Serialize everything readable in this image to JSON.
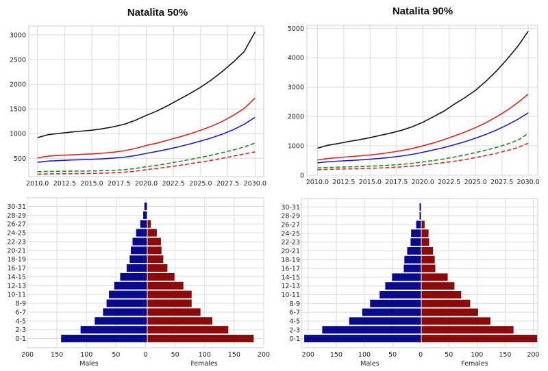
{
  "chart_data": [
    {
      "type": "line",
      "title": "Natalita 50%",
      "x": [
        2010,
        2011,
        2012,
        2013,
        2014,
        2015,
        2016,
        2017,
        2018,
        2019,
        2020,
        2021,
        2022,
        2023,
        2024,
        2025,
        2026,
        2027,
        2028,
        2029,
        2030
      ],
      "xlim": [
        2009.2,
        2030.8
      ],
      "ylim": [
        130,
        3180
      ],
      "xticks": [
        "2010.0",
        "2012.5",
        "2015.0",
        "2017.5",
        "2020.0",
        "2022.5",
        "2025.0",
        "2027.5",
        "2030.0"
      ],
      "yticks": [
        "500",
        "1000",
        "1500",
        "2000",
        "2500",
        "3000"
      ],
      "grid": true,
      "series": [
        {
          "color": "#111111",
          "style": "solid",
          "values": [
            920,
            980,
            1005,
            1030,
            1050,
            1070,
            1100,
            1140,
            1190,
            1270,
            1370,
            1460,
            1570,
            1690,
            1810,
            1940,
            2090,
            2260,
            2450,
            2660,
            3060
          ]
        },
        {
          "color": "#e8201c",
          "style": "solid",
          "values": [
            510,
            545,
            560,
            570,
            580,
            590,
            605,
            625,
            655,
            700,
            760,
            810,
            870,
            930,
            995,
            1070,
            1150,
            1250,
            1370,
            1510,
            1720
          ]
        },
        {
          "color": "#1a1adf",
          "style": "solid",
          "values": [
            420,
            445,
            455,
            465,
            472,
            480,
            490,
            505,
            525,
            555,
            600,
            640,
            685,
            735,
            790,
            850,
            915,
            990,
            1080,
            1190,
            1330
          ]
        },
        {
          "color": "#1c8a1c",
          "style": "dashed",
          "values": [
            230,
            235,
            238,
            240,
            242,
            245,
            250,
            258,
            270,
            295,
            330,
            360,
            395,
            435,
            475,
            520,
            565,
            615,
            670,
            730,
            810
          ]
        },
        {
          "color": "#e8201c",
          "style": "dashed",
          "values": [
            180,
            185,
            188,
            190,
            192,
            195,
            200,
            208,
            220,
            240,
            270,
            295,
            325,
            355,
            390,
            425,
            460,
            500,
            545,
            590,
            630
          ]
        }
      ]
    },
    {
      "type": "line",
      "title": "Natalita 90%",
      "x": [
        2010,
        2011,
        2012,
        2013,
        2014,
        2015,
        2016,
        2017,
        2018,
        2019,
        2020,
        2021,
        2022,
        2023,
        2024,
        2025,
        2026,
        2027,
        2028,
        2029,
        2030
      ],
      "xlim": [
        2009.0,
        2030.9
      ],
      "ylim": [
        0,
        5100
      ],
      "xticks": [
        "2010.0",
        "2012.5",
        "2015.0",
        "2017.5",
        "2020.0",
        "2022.5",
        "2025.0",
        "2027.5",
        "2030.0"
      ],
      "yticks": [
        "0",
        "1000",
        "2000",
        "3000",
        "4000",
        "5000"
      ],
      "grid": true,
      "series": [
        {
          "color": "#111111",
          "style": "solid",
          "values": [
            920,
            1020,
            1080,
            1150,
            1210,
            1280,
            1360,
            1440,
            1530,
            1650,
            1800,
            1990,
            2180,
            2420,
            2640,
            2890,
            3200,
            3550,
            3950,
            4380,
            4900
          ]
        },
        {
          "color": "#e8201c",
          "style": "solid",
          "values": [
            520,
            570,
            600,
            630,
            660,
            690,
            730,
            780,
            840,
            910,
            1000,
            1100,
            1210,
            1340,
            1470,
            1620,
            1790,
            1990,
            2210,
            2470,
            2760
          ]
        },
        {
          "color": "#1a1adf",
          "style": "solid",
          "values": [
            420,
            460,
            480,
            500,
            520,
            545,
            575,
            610,
            655,
            710,
            780,
            860,
            940,
            1040,
            1140,
            1260,
            1390,
            1540,
            1710,
            1900,
            2120
          ]
        },
        {
          "color": "#1c8a1c",
          "style": "dashed",
          "values": [
            250,
            265,
            275,
            285,
            295,
            310,
            325,
            345,
            370,
            405,
            450,
            500,
            555,
            620,
            690,
            770,
            855,
            950,
            1060,
            1190,
            1420
          ]
        },
        {
          "color": "#e8201c",
          "style": "dashed",
          "values": [
            190,
            200,
            210,
            218,
            226,
            236,
            248,
            264,
            284,
            310,
            345,
            385,
            430,
            480,
            535,
            600,
            670,
            750,
            840,
            940,
            1090
          ]
        }
      ]
    },
    {
      "type": "bar",
      "orientation": "horizontal-pyramid",
      "categories": [
        "0-1",
        "2-3",
        "4-5",
        "6-7",
        "8-9",
        "10-11",
        "12-13",
        "14-15",
        "16-17",
        "18-19",
        "20-21",
        "22-23",
        "24-25",
        "26-27",
        "28-29",
        "30-31"
      ],
      "xlim": [
        -200,
        200
      ],
      "xticks": [
        "200",
        "150",
        "100",
        "50",
        "0",
        "50",
        "100",
        "150",
        "200"
      ],
      "xlabel_left": "Males",
      "xlabel_right": "Females",
      "grid": true,
      "series": [
        {
          "name": "Males",
          "color": "#0a0a8c",
          "values": [
            143,
            110,
            86,
            72,
            66,
            62,
            53,
            43,
            32,
            27,
            25,
            22,
            16,
            9,
            4,
            2
          ]
        },
        {
          "name": "Females",
          "color": "#8c0a0a",
          "values": [
            183,
            140,
            113,
            93,
            78,
            78,
            64,
            49,
            37,
            30,
            27,
            26,
            19,
            9,
            3,
            2
          ]
        }
      ]
    },
    {
      "type": "bar",
      "orientation": "horizontal-pyramid",
      "categories": [
        "0-1",
        "2-3",
        "4-5",
        "6-7",
        "8-9",
        "10-11",
        "12-13",
        "14-15",
        "16-17",
        "18-19",
        "20-21",
        "22-23",
        "24-25",
        "26-27",
        "28-29",
        "30-31"
      ],
      "xlim": [
        -212,
        208
      ],
      "xticks": [
        "200",
        "150",
        "100",
        "50",
        "0",
        "50",
        "100",
        "150",
        "200"
      ],
      "xlabel_left": "Males",
      "xlabel_right": "Females",
      "grid": true,
      "series": [
        {
          "name": "Males",
          "color": "#0a0a8c",
          "values": [
            207,
            175,
            127,
            104,
            90,
            73,
            63,
            51,
            30,
            29,
            24,
            18,
            17,
            8,
            2,
            2
          ]
        },
        {
          "name": "Females",
          "color": "#8c0a0a",
          "values": [
            207,
            165,
            124,
            102,
            88,
            72,
            60,
            48,
            26,
            25,
            22,
            15,
            14,
            7,
            1,
            1
          ]
        }
      ]
    }
  ]
}
